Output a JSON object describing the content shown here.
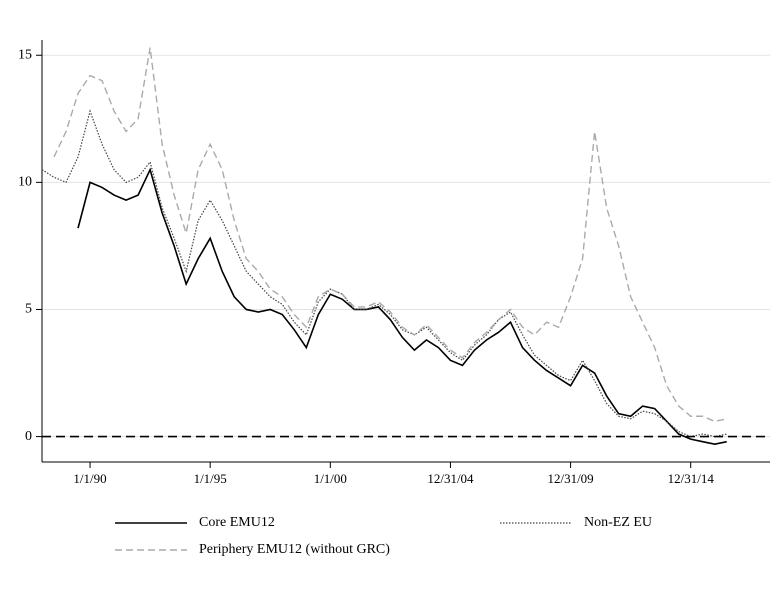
{
  "chart_data": {
    "type": "line",
    "x": [
      1988.0,
      1988.5,
      1989.0,
      1989.5,
      1990.0,
      1990.5,
      1991.0,
      1991.5,
      1992.0,
      1992.5,
      1993.0,
      1993.5,
      1994.0,
      1994.5,
      1995.0,
      1995.5,
      1996.0,
      1996.5,
      1997.0,
      1997.5,
      1998.0,
      1998.5,
      1999.0,
      1999.5,
      2000.0,
      2000.5,
      2001.0,
      2001.5,
      2002.0,
      2002.5,
      2003.0,
      2003.5,
      2004.0,
      2004.5,
      2005.0,
      2005.5,
      2006.0,
      2006.5,
      2007.0,
      2007.5,
      2008.0,
      2008.5,
      2009.0,
      2009.5,
      2010.0,
      2010.5,
      2011.0,
      2011.5,
      2012.0,
      2012.5,
      2013.0,
      2013.5,
      2014.0,
      2014.5,
      2015.0,
      2015.5,
      2016.0,
      2016.5
    ],
    "series": [
      {
        "name": "Core EMU12",
        "color": "#000000",
        "dash": "none",
        "width": 1.6,
        "values": [
          null,
          null,
          null,
          8.2,
          10.0,
          9.8,
          9.5,
          9.3,
          9.5,
          10.5,
          8.8,
          7.5,
          6.0,
          7.0,
          7.8,
          6.5,
          5.5,
          5.0,
          4.9,
          5.0,
          4.8,
          4.2,
          3.5,
          4.8,
          5.6,
          5.4,
          5.0,
          5.0,
          5.1,
          4.6,
          3.9,
          3.4,
          3.8,
          3.5,
          3.0,
          2.8,
          3.4,
          3.8,
          4.1,
          4.5,
          3.5,
          3.0,
          2.6,
          2.3,
          2.0,
          2.8,
          2.5,
          1.6,
          0.9,
          0.8,
          1.2,
          1.1,
          0.6,
          0.1,
          -0.1,
          -0.2,
          -0.3,
          -0.2
        ]
      },
      {
        "name": "Non-EZ EU",
        "color": "#444444",
        "dash": "1.5 1.5",
        "width": 1.2,
        "values": [
          10.5,
          10.2,
          10.0,
          11.0,
          12.8,
          11.5,
          10.5,
          10.0,
          10.2,
          10.8,
          9.0,
          7.8,
          6.5,
          8.5,
          9.3,
          8.5,
          7.5,
          6.5,
          6.0,
          5.5,
          5.2,
          4.5,
          4.0,
          5.3,
          5.8,
          5.6,
          5.0,
          5.0,
          5.2,
          4.8,
          4.2,
          4.0,
          4.3,
          3.8,
          3.3,
          3.0,
          3.6,
          4.0,
          4.6,
          4.9,
          4.0,
          3.2,
          2.8,
          2.4,
          2.2,
          3.0,
          2.2,
          1.3,
          0.8,
          0.7,
          1.0,
          0.9,
          0.6,
          0.2,
          0.0,
          0.1,
          0.0,
          0.1
        ]
      },
      {
        "name": "Periphery EMU12 (without GRC)",
        "color": "#aaaaaa",
        "dash": "7 4",
        "width": 1.4,
        "values": [
          null,
          11.0,
          12.0,
          13.5,
          14.2,
          14.0,
          12.8,
          12.0,
          12.5,
          15.3,
          11.5,
          9.5,
          8.0,
          10.5,
          11.5,
          10.5,
          8.5,
          7.0,
          6.5,
          5.8,
          5.5,
          4.8,
          4.3,
          5.5,
          5.8,
          5.6,
          5.1,
          5.1,
          5.3,
          4.9,
          4.3,
          4.0,
          4.4,
          3.9,
          3.4,
          3.1,
          3.7,
          4.1,
          4.6,
          5.0,
          4.3,
          4.0,
          4.5,
          4.3,
          5.5,
          7.0,
          12.0,
          9.0,
          7.5,
          5.5,
          4.5,
          3.5,
          2.0,
          1.2,
          0.8,
          0.8,
          0.6,
          0.7
        ]
      }
    ],
    "xlim": [
      1988.0,
      2018.3
    ],
    "xticks": [
      {
        "value": 1990.0,
        "label": "1/1/90"
      },
      {
        "value": 1995.0,
        "label": "1/1/95"
      },
      {
        "value": 2000.0,
        "label": "1/1/00"
      },
      {
        "value": 2005.0,
        "label": "12/31/04"
      },
      {
        "value": 2010.0,
        "label": "12/31/09"
      },
      {
        "value": 2015.0,
        "label": "12/31/14"
      }
    ],
    "ylim": [
      -1,
      15.6
    ],
    "yticks": [
      0,
      5,
      10,
      15
    ],
    "grid": true,
    "hline": 0
  }
}
